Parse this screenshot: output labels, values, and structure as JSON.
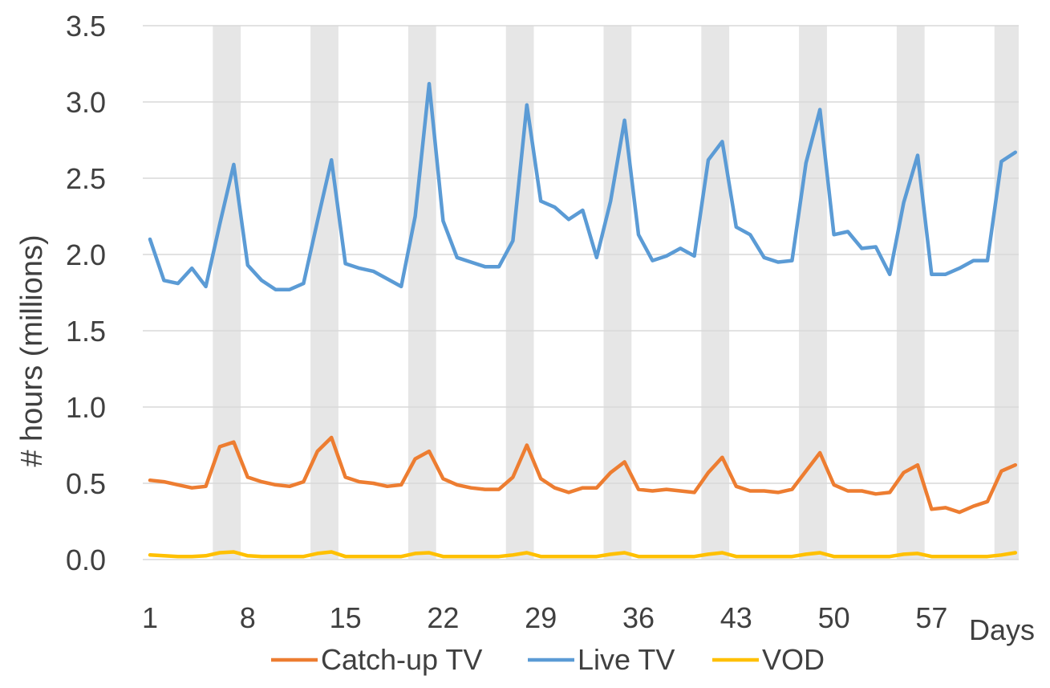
{
  "chart_data": {
    "type": "line",
    "xlabel": "Days",
    "ylabel": "# hours (millions)",
    "ylim": [
      0,
      3.5
    ],
    "yticks": [
      "0.0",
      "0.5",
      "1.0",
      "1.5",
      "2.0",
      "2.5",
      "3.0",
      "3.5"
    ],
    "xticks": [
      "1",
      "8",
      "15",
      "22",
      "29",
      "36",
      "43",
      "50",
      "57"
    ],
    "x_range": [
      1,
      61
    ],
    "grid": "horizontal",
    "legend_position": "bottom",
    "weekend_shading": [
      [
        6,
        7
      ],
      [
        13,
        14
      ],
      [
        20,
        21
      ],
      [
        27,
        28
      ],
      [
        34,
        35
      ],
      [
        41,
        42
      ],
      [
        48,
        49
      ],
      [
        55,
        56
      ],
      [
        62,
        63
      ]
    ],
    "shading_color": "#e6e6e6",
    "series": [
      {
        "name": "Catch-up TV",
        "color": "#ed7d31",
        "values": [
          0.52,
          0.51,
          0.49,
          0.47,
          0.48,
          0.74,
          0.77,
          0.54,
          0.51,
          0.49,
          0.48,
          0.51,
          0.71,
          0.8,
          0.54,
          0.51,
          0.5,
          0.48,
          0.49,
          0.66,
          0.71,
          0.53,
          0.49,
          0.47,
          0.46,
          0.46,
          0.54,
          0.75,
          0.53,
          0.47,
          0.44,
          0.47,
          0.47,
          0.57,
          0.64,
          0.46,
          0.45,
          0.46,
          0.45,
          0.44,
          0.57,
          0.67,
          0.48,
          0.45,
          0.45,
          0.44,
          0.46,
          0.58,
          0.7,
          0.49,
          0.45,
          0.45,
          0.43,
          0.44,
          0.57,
          0.62,
          0.33,
          0.34,
          0.31,
          0.35,
          0.38,
          0.58,
          0.62
        ]
      },
      {
        "name": "Live TV",
        "color": "#5b9bd5",
        "values": [
          2.1,
          1.83,
          1.81,
          1.91,
          1.79,
          2.2,
          2.59,
          1.93,
          1.83,
          1.77,
          1.77,
          1.81,
          2.22,
          2.62,
          1.94,
          1.91,
          1.89,
          1.84,
          1.79,
          2.25,
          3.12,
          2.22,
          1.98,
          1.95,
          1.92,
          1.92,
          2.09,
          2.98,
          2.35,
          2.31,
          2.23,
          2.29,
          1.98,
          2.35,
          2.88,
          2.13,
          1.96,
          1.99,
          2.04,
          1.99,
          2.62,
          2.74,
          2.18,
          2.13,
          1.98,
          1.95,
          1.96,
          2.6,
          2.95,
          2.13,
          2.15,
          2.04,
          2.05,
          1.87,
          2.34,
          2.65,
          1.87,
          1.87,
          1.91,
          1.96,
          1.96,
          2.61,
          2.67
        ]
      },
      {
        "name": "VOD",
        "color": "#ffc000",
        "values": [
          0.03,
          0.025,
          0.02,
          0.02,
          0.025,
          0.045,
          0.05,
          0.025,
          0.02,
          0.02,
          0.02,
          0.02,
          0.04,
          0.05,
          0.02,
          0.02,
          0.02,
          0.02,
          0.02,
          0.04,
          0.045,
          0.02,
          0.02,
          0.02,
          0.02,
          0.02,
          0.03,
          0.045,
          0.02,
          0.02,
          0.02,
          0.02,
          0.02,
          0.035,
          0.045,
          0.02,
          0.02,
          0.02,
          0.02,
          0.02,
          0.035,
          0.045,
          0.02,
          0.02,
          0.02,
          0.02,
          0.02,
          0.035,
          0.045,
          0.02,
          0.02,
          0.02,
          0.02,
          0.02,
          0.035,
          0.04,
          0.02,
          0.02,
          0.02,
          0.02,
          0.02,
          0.03,
          0.045
        ]
      }
    ]
  }
}
